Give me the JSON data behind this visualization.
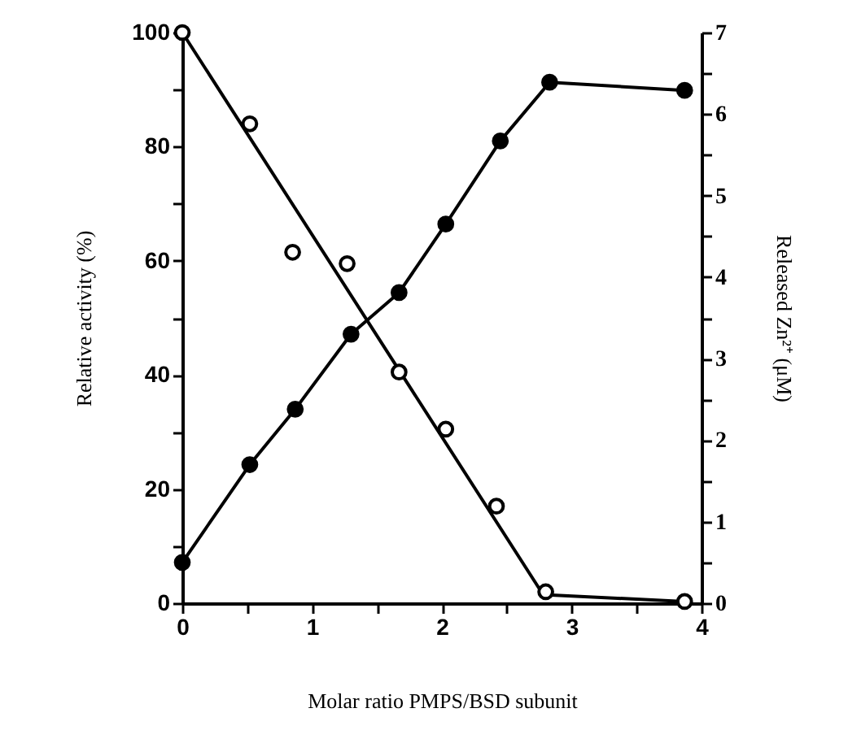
{
  "chart_data": {
    "type": "scatter",
    "xlabel": "Molar ratio PMPS/BSD subunit",
    "ylabel": "Relative activity (%)",
    "y2label": "Released Zn²⁺ (μM)",
    "xlim": [
      0,
      4
    ],
    "xticks": [
      0,
      {
        "value": 0.5,
        "label": null
      },
      1,
      {
        "value": 1.5,
        "label": null
      },
      2,
      {
        "value": 2.5,
        "label": null
      },
      3,
      {
        "value": 3.5,
        "label": null
      },
      4
    ],
    "ylim": [
      0,
      100
    ],
    "yticks": [
      0,
      {
        "value": 10,
        "label": null
      },
      20,
      {
        "value": 30,
        "label": null
      },
      40,
      {
        "value": 50,
        "label": null
      },
      60,
      {
        "value": 70,
        "label": null
      },
      80,
      {
        "value": 90,
        "label": null
      },
      100
    ],
    "y2lim": [
      0,
      7
    ],
    "y2ticks": [
      0,
      {
        "value": 0.5,
        "label": null
      },
      1,
      {
        "value": 1.5,
        "label": null
      },
      2,
      {
        "value": 2.5,
        "label": null
      },
      3,
      {
        "value": 3.5,
        "label": null
      },
      4,
      {
        "value": 4.5,
        "label": null
      },
      5,
      {
        "value": 5.5,
        "label": null
      },
      6,
      {
        "value": 6.5,
        "label": null
      },
      7
    ],
    "grid": false,
    "series": [
      {
        "type": "line",
        "color": "#000000",
        "marker": "none",
        "x": [
          0,
          2.78,
          3.87
        ],
        "values": [
          100,
          1.5,
          0.3
        ]
      },
      {
        "color": "#000000",
        "marker": "circle",
        "x": [
          0,
          0.52,
          0.85,
          1.27,
          1.67,
          2.03,
          2.42,
          2.8,
          3.87
        ],
        "values": [
          100,
          84,
          61.5,
          59.5,
          40.5,
          30.5,
          17,
          2,
          0.3
        ]
      },
      {
        "type": "line",
        "axis": "y2",
        "color": "#000000",
        "marker": "circle",
        "x": [
          0,
          0.52,
          0.87,
          1.3,
          1.67,
          2.03,
          2.45,
          2.83,
          3.87
        ],
        "values": [
          0.5,
          1.7,
          2.38,
          3.3,
          3.81,
          4.65,
          5.67,
          6.39,
          6.29
        ]
      }
    ]
  }
}
